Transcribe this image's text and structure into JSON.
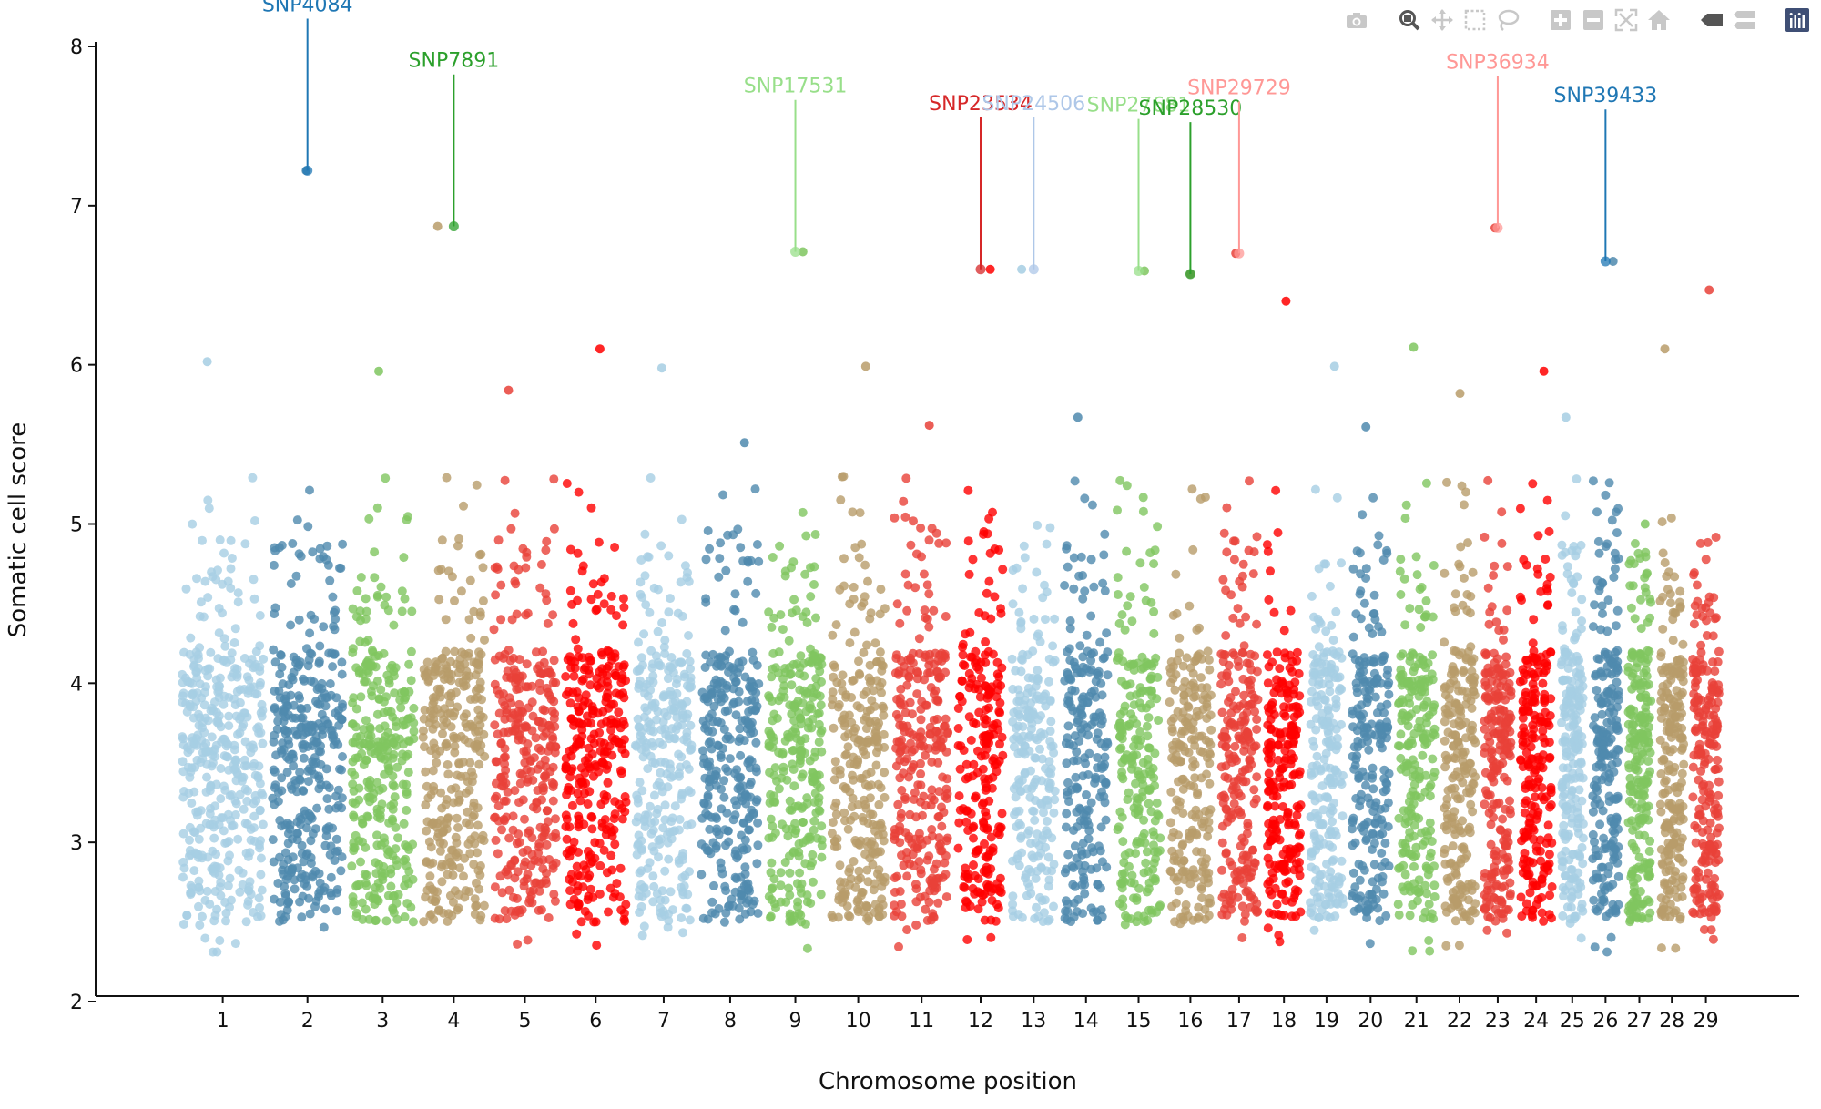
{
  "modebar": {
    "buttons": [
      {
        "name": "camera-icon",
        "title": "Download plot as a png"
      },
      {
        "name": "zoom-icon",
        "title": "Zoom"
      },
      {
        "name": "pan-icon",
        "title": "Pan"
      },
      {
        "name": "box-select-icon",
        "title": "Box Select"
      },
      {
        "name": "lasso-select-icon",
        "title": "Lasso Select"
      },
      {
        "name": "zoom-in-icon",
        "title": "Zoom in"
      },
      {
        "name": "zoom-out-icon",
        "title": "Zoom out"
      },
      {
        "name": "autoscale-icon",
        "title": "Autoscale"
      },
      {
        "name": "reset-axes-icon",
        "title": "Reset axes"
      },
      {
        "name": "hover-closest-icon",
        "title": "Show closest data on hover"
      },
      {
        "name": "hover-compare-icon",
        "title": "Compare data on hover"
      },
      {
        "name": "plotly-logo-icon",
        "title": "Produced with Plotly"
      }
    ]
  },
  "chart_data": {
    "type": "scatter",
    "title": "",
    "xlabel": "Chromosome position",
    "ylabel": "Somatic cell score",
    "ylim": [
      2,
      8
    ],
    "yticks": [
      2,
      3,
      4,
      5,
      6,
      7,
      8
    ],
    "grid": false,
    "legend": "none",
    "categories": [
      "1",
      "2",
      "3",
      "4",
      "5",
      "6",
      "7",
      "8",
      "9",
      "10",
      "11",
      "12",
      "13",
      "14",
      "15",
      "16",
      "17",
      "18",
      "19",
      "20",
      "21",
      "22",
      "23",
      "24",
      "25",
      "26",
      "27",
      "28",
      "29"
    ],
    "palette": [
      "#a6cee3",
      "#4f89ae",
      "#7fc65f",
      "#b89c6a",
      "#e84138",
      "#ff0000"
    ],
    "chromosome_max_score": [
      6.02,
      7.22,
      5.96,
      6.87,
      5.84,
      6.1,
      5.98,
      5.51,
      6.71,
      5.99,
      5.62,
      6.6,
      6.6,
      5.67,
      6.59,
      6.57,
      6.7,
      6.4,
      5.99,
      5.61,
      6.11,
      5.82,
      6.86,
      5.96,
      5.67,
      6.65,
      5.0,
      6.1,
      6.47
    ],
    "highlighted_snps": [
      {
        "label": "SNP4084",
        "chromosome": "2",
        "score": 7.22,
        "color": "#1f77b4"
      },
      {
        "label": "SNP7891",
        "chromosome": "4",
        "score": 6.87,
        "color": "#2ca02c"
      },
      {
        "label": "SNP17531",
        "chromosome": "9",
        "score": 6.71,
        "color": "#98df8a"
      },
      {
        "label": "SNP23534",
        "chromosome": "12",
        "score": 6.6,
        "color": "#d62728"
      },
      {
        "label": "SNP24506",
        "chromosome": "13",
        "score": 6.6,
        "color": "#aec7e8"
      },
      {
        "label": "SNP27681",
        "chromosome": "15",
        "score": 6.59,
        "color": "#98df8a"
      },
      {
        "label": "SNP28530",
        "chromosome": "16",
        "score": 6.57,
        "color": "#2ca02c"
      },
      {
        "label": "SNP29729",
        "chromosome": "17",
        "score": 6.7,
        "color": "#ff9896"
      },
      {
        "label": "SNP36934",
        "chromosome": "23",
        "score": 6.86,
        "color": "#ff9896"
      },
      {
        "label": "SNP39433",
        "chromosome": "26",
        "score": 6.65,
        "color": "#1f77b4"
      }
    ]
  }
}
